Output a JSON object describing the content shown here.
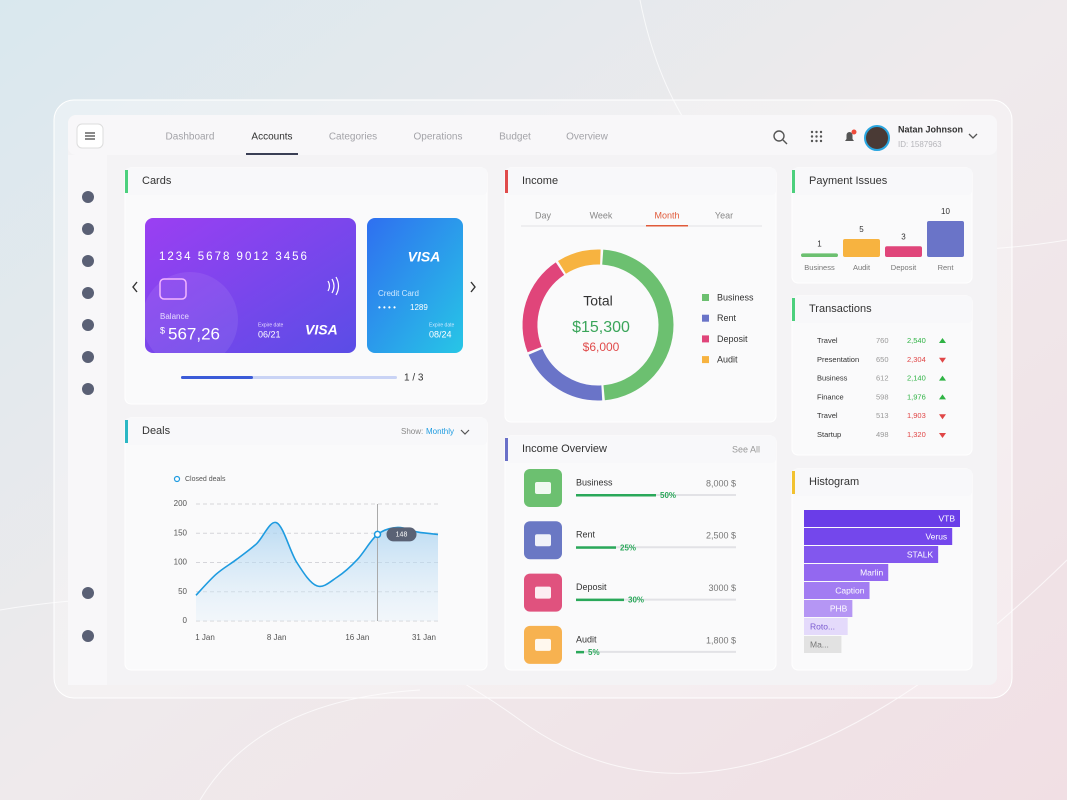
{
  "nav": {
    "tabs": [
      "Dashboard",
      "Accounts",
      "Categories",
      "Operations",
      "Budget",
      "Overview"
    ],
    "active": 1
  },
  "user": {
    "name": "Natan Johnson",
    "id": "ID: 1587963"
  },
  "cards": {
    "title": "Cards",
    "primary": {
      "number": "1234 5678 9012 3456",
      "balance_label": "Balance",
      "currency": "$",
      "balance": "567,26",
      "expire_label": "Expire date",
      "expire": "06/21",
      "brand": "VISA"
    },
    "secondary": {
      "brand": "VISA",
      "label": "Credit Card",
      "mask": "• • • •",
      "last4": "1289",
      "expire_label": "Expire date",
      "expire": "08/24"
    },
    "pager": "1 / 3"
  },
  "deals": {
    "title": "Deals",
    "show_label": "Show:",
    "period": "Monthly",
    "chart_data": {
      "type": "area",
      "categories": [
        "1 Jan",
        null,
        null,
        null,
        "8 Jan",
        null,
        null,
        null,
        "16 Jan",
        null,
        null,
        null,
        "31 Jan"
      ],
      "series": [
        {
          "name": "Closed deals",
          "color": "#1e9be0",
          "values": [
            44,
            80,
            105,
            132,
            168,
            100,
            60,
            75,
            105,
            148,
            160,
            152,
            148
          ]
        }
      ],
      "ylim": [
        0,
        200
      ],
      "yticks": [
        0,
        50,
        100,
        150,
        200
      ],
      "grid": true,
      "highlight": 9
    }
  },
  "income": {
    "title": "Income",
    "tabs": [
      "Day",
      "Week",
      "Month",
      "Year"
    ],
    "active": 2,
    "chart_data": {
      "type": "donut",
      "center_title": "Total",
      "center_value": "$15,300",
      "center_sub": "$6,000",
      "categories": [
        "Business",
        "Rent",
        "Deposit",
        "Audit"
      ],
      "values": [
        48,
        20,
        22,
        10
      ],
      "colors": [
        "#6cc070",
        "#6a74c8",
        "#e0457a",
        "#f7b340"
      ]
    }
  },
  "income_overview": {
    "title": "Income Overview",
    "see_all": "See All",
    "chart_data": {
      "type": "progress",
      "categories": [
        "Business",
        "Rent",
        "Deposit",
        "Audit"
      ],
      "values": [
        50,
        25,
        30,
        5
      ],
      "value_labels": [
        "50%",
        "25%",
        "30%",
        "5%"
      ],
      "amounts": [
        "8,000 $",
        "2,500 $",
        "3000 $",
        "1,800 $"
      ],
      "colors": [
        "#6cc070",
        "#6a78c4",
        "#e0527e",
        "#f7b250"
      ],
      "bar_color": "#2aa85a"
    }
  },
  "payment_issues": {
    "title": "Payment Issues",
    "chart_data": {
      "type": "bar",
      "categories": [
        "Business",
        "Audit",
        "Deposit",
        "Rent"
      ],
      "values": [
        1,
        5,
        3,
        10
      ],
      "colors": [
        "#6cc070",
        "#f7b340",
        "#e0457a",
        "#6a74c8"
      ],
      "ylim": [
        0,
        10
      ]
    }
  },
  "transactions": {
    "title": "Transactions",
    "rows": [
      [
        "Travel",
        "760",
        "2,540"
      ],
      [
        "Presentation",
        "650",
        "2,304"
      ],
      [
        "Business",
        "612",
        "2,140"
      ],
      [
        "Finance",
        "598",
        "1,976"
      ],
      [
        "Travel",
        "513",
        "1,903"
      ],
      [
        "Startup",
        "498",
        "1,320"
      ]
    ],
    "trend": [
      "up",
      "down",
      "up",
      "up",
      "down",
      "down"
    ]
  },
  "histogram": {
    "title": "Histogram",
    "chart_data": {
      "type": "hbar",
      "categories": [
        "VTB",
        "Verus",
        "STALK",
        "Marlin",
        "Caption",
        "PHB",
        "Roto...",
        "Ma..."
      ],
      "values": [
        100,
        95,
        86,
        54,
        42,
        31,
        28,
        24
      ],
      "xlim": [
        0,
        100
      ],
      "colors": [
        "#6a3de8",
        "#7447ec",
        "#8257ee",
        "#9368f0",
        "#a27cf2",
        "#b596f4",
        "#e4dafb",
        "#e2e2e2"
      ],
      "label_colors": [
        "#ffffff",
        "#ffffff",
        "#ffffff",
        "#ffffff",
        "#ffffff",
        "#ffffff",
        "#7a5ad0",
        "#777777"
      ]
    }
  }
}
